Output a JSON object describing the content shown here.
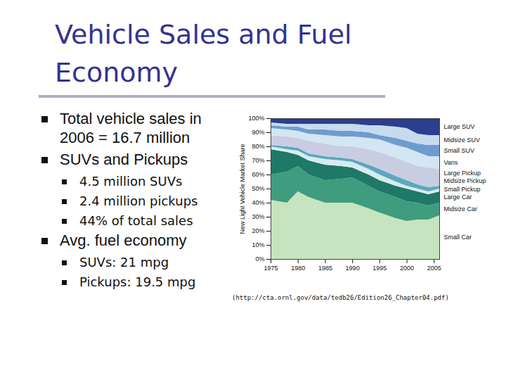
{
  "slide": {
    "title": "Vehicle Sales and Fuel Economy",
    "bullets": [
      {
        "text": "Total vehicle sales in 2006 = 16.7 million",
        "sub": []
      },
      {
        "text": "SUVs and Pickups",
        "sub": [
          "4.5 million SUVs",
          "2.4 million pickups",
          "44% of total sales"
        ]
      },
      {
        "text": "Avg. fuel economy",
        "sub": [
          "SUVs: 21 mpg",
          "Pickups: 19.5 mpg"
        ]
      }
    ],
    "caption": "(http://cta.ornl.gov/data/tedb26/Edition26_Chapter04.pdf)"
  },
  "chart_data": {
    "type": "area",
    "stacked": true,
    "ylabel": "New Light Vehicle Market Share",
    "x": [
      1975,
      1978,
      1980,
      1982,
      1985,
      1988,
      1990,
      1993,
      1995,
      1998,
      2000,
      2002,
      2004,
      2006
    ],
    "xlim": [
      1975,
      2006
    ],
    "xticks": [
      1975,
      1980,
      1985,
      1990,
      1995,
      2000,
      2005
    ],
    "ylim": [
      0,
      100
    ],
    "yticks": [
      {
        "value": 0,
        "label": "0%"
      },
      {
        "value": 10,
        "label": "10%"
      },
      {
        "value": 20,
        "label": "20%"
      },
      {
        "value": 30,
        "label": "30%"
      },
      {
        "value": 40,
        "label": "40%"
      },
      {
        "value": 50,
        "label": "50%"
      },
      {
        "value": 60,
        "label": "60%"
      },
      {
        "value": 70,
        "label": "70%"
      },
      {
        "value": 80,
        "label": "80%"
      },
      {
        "value": 90,
        "label": "90%"
      },
      {
        "value": 100,
        "label": "100%"
      }
    ],
    "series": [
      {
        "name": "Small Car",
        "color": "#c6e4bf",
        "values": [
          42,
          40,
          48,
          44,
          40,
          40,
          40,
          36,
          33,
          29,
          27,
          28,
          28,
          31
        ]
      },
      {
        "name": "Midsize Car",
        "color": "#3f9c7e",
        "values": [
          18,
          22,
          18,
          16,
          16,
          17,
          18,
          16,
          15,
          15,
          14,
          12,
          10,
          9
        ]
      },
      {
        "name": "Large Car",
        "color": "#1f7868",
        "values": [
          18,
          14,
          8,
          10,
          11,
          9,
          7,
          8,
          8,
          8,
          9,
          8,
          8,
          8
        ]
      },
      {
        "name": "Small Pickup",
        "color": "#d6ecef",
        "values": [
          2,
          2,
          3,
          3,
          4,
          4,
          4,
          4,
          4,
          3,
          2,
          2,
          2,
          2
        ]
      },
      {
        "name": "Midsize Pickup",
        "color": "#5ea7bd",
        "values": [
          1,
          2,
          2,
          2,
          2,
          2,
          2,
          3,
          4,
          4,
          4,
          3,
          3,
          2
        ]
      },
      {
        "name": "Large Pickup",
        "color": "#c9cde2",
        "values": [
          7,
          7,
          7,
          9,
          9,
          8,
          9,
          11,
          12,
          13,
          13,
          13,
          14,
          12
        ]
      },
      {
        "name": "Vans",
        "color": "#d3e6f2",
        "values": [
          5,
          5,
          5,
          5,
          6,
          7,
          7,
          8,
          9,
          9,
          10,
          10,
          8,
          9
        ]
      },
      {
        "name": "Small SUV",
        "color": "#6f9ccf",
        "values": [
          2,
          2,
          3,
          3,
          4,
          4,
          4,
          4,
          3,
          5,
          5,
          6,
          8,
          8
        ]
      },
      {
        "name": "Midsize SUV",
        "color": "#c7dbef",
        "values": [
          2,
          2,
          2,
          4,
          4,
          5,
          5,
          5,
          7,
          8,
          9,
          7,
          7,
          7
        ]
      },
      {
        "name": "Large SUV",
        "color": "#2b3f8e",
        "values": [
          3,
          4,
          4,
          4,
          4,
          4,
          4,
          5,
          5,
          6,
          7,
          11,
          12,
          12
        ]
      }
    ]
  }
}
